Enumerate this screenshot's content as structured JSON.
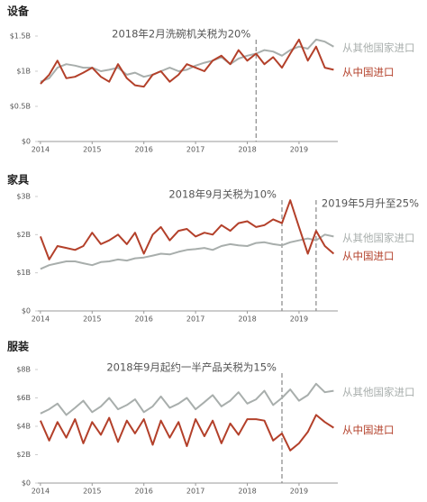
{
  "chart_data": [
    {
      "type": "line",
      "title": "设备",
      "x": [
        2014,
        2014.17,
        2014.33,
        2014.5,
        2014.67,
        2014.83,
        2015,
        2015.17,
        2015.33,
        2015.5,
        2015.67,
        2015.83,
        2016,
        2016.17,
        2016.33,
        2016.5,
        2016.67,
        2016.83,
        2017,
        2017.17,
        2017.33,
        2017.5,
        2017.67,
        2017.83,
        2018,
        2018.17,
        2018.33,
        2018.5,
        2018.67,
        2018.83,
        2019,
        2019.17,
        2019.33,
        2019.5,
        2019.67
      ],
      "series": [
        {
          "name": "从其他国家进口",
          "color": "#a8aeac",
          "values": [
            0.85,
            0.9,
            1.05,
            1.1,
            1.08,
            1.05,
            1.05,
            1.0,
            1.02,
            1.05,
            0.95,
            0.98,
            0.92,
            0.95,
            1.0,
            1.05,
            1.0,
            1.02,
            1.08,
            1.12,
            1.15,
            1.2,
            1.1,
            1.18,
            1.22,
            1.25,
            1.3,
            1.28,
            1.22,
            1.3,
            1.35,
            1.32,
            1.45,
            1.42,
            1.35
          ]
        },
        {
          "name": "从中国进口",
          "color": "#b3402a",
          "values": [
            0.82,
            0.95,
            1.15,
            0.9,
            0.92,
            0.98,
            1.05,
            0.92,
            0.85,
            1.1,
            0.9,
            0.8,
            0.78,
            0.95,
            1.0,
            0.85,
            0.95,
            1.1,
            1.05,
            1.0,
            1.15,
            1.22,
            1.1,
            1.3,
            1.15,
            1.25,
            1.1,
            1.2,
            1.05,
            1.25,
            1.45,
            1.15,
            1.35,
            1.05,
            1.02
          ]
        }
      ],
      "events": [
        {
          "x": 2018.17,
          "label": "2018年2月洗碗机关税为20%"
        }
      ],
      "xlim": [
        2013.95,
        2019.75
      ],
      "xticks": [
        2014,
        2015,
        2016,
        2017,
        2018,
        2019
      ],
      "ylim": [
        0,
        1.5
      ],
      "yticks": [
        {
          "value": 0,
          "label": "$0"
        },
        {
          "value": 0.5,
          "label": "$0.5B"
        },
        {
          "value": 1,
          "label": "$1B"
        },
        {
          "value": 1.5,
          "label": "$1.5B"
        }
      ]
    },
    {
      "type": "line",
      "title": "家具",
      "x": [
        2014,
        2014.17,
        2014.33,
        2014.5,
        2014.67,
        2014.83,
        2015,
        2015.17,
        2015.33,
        2015.5,
        2015.67,
        2015.83,
        2016,
        2016.17,
        2016.33,
        2016.5,
        2016.67,
        2016.83,
        2017,
        2017.17,
        2017.33,
        2017.5,
        2017.67,
        2017.83,
        2018,
        2018.17,
        2018.33,
        2018.5,
        2018.67,
        2018.83,
        2019,
        2019.17,
        2019.33,
        2019.5,
        2019.67
      ],
      "series": [
        {
          "name": "从其他国家进口",
          "color": "#a8aeac",
          "values": [
            1.1,
            1.2,
            1.25,
            1.3,
            1.3,
            1.25,
            1.2,
            1.28,
            1.3,
            1.35,
            1.32,
            1.38,
            1.4,
            1.45,
            1.5,
            1.48,
            1.55,
            1.6,
            1.62,
            1.65,
            1.6,
            1.7,
            1.75,
            1.72,
            1.7,
            1.78,
            1.8,
            1.75,
            1.72,
            1.8,
            1.85,
            1.9,
            1.85,
            2.0,
            1.95
          ]
        },
        {
          "name": "从中国进口",
          "color": "#b3402a",
          "values": [
            1.95,
            1.35,
            1.7,
            1.65,
            1.6,
            1.7,
            2.05,
            1.75,
            1.85,
            2.0,
            1.75,
            2.05,
            1.5,
            2.0,
            2.2,
            1.85,
            2.1,
            2.15,
            1.95,
            2.05,
            2.0,
            2.25,
            2.1,
            2.3,
            2.35,
            2.2,
            2.25,
            2.4,
            2.3,
            2.9,
            2.2,
            1.5,
            2.1,
            1.7,
            1.5
          ]
        }
      ],
      "events": [
        {
          "x": 2018.67,
          "label": "2018年9月关税为10%"
        },
        {
          "x": 2019.33,
          "label": "2019年5月升至25%"
        }
      ],
      "xlim": [
        2013.95,
        2019.75
      ],
      "xticks": [
        2014,
        2015,
        2016,
        2017,
        2018,
        2019
      ],
      "ylim": [
        0,
        3
      ],
      "yticks": [
        {
          "value": 0,
          "label": "$0"
        },
        {
          "value": 1,
          "label": "$1B"
        },
        {
          "value": 2,
          "label": "$2B"
        },
        {
          "value": 3,
          "label": "$3B"
        }
      ]
    },
    {
      "type": "line",
      "title": "服装",
      "x": [
        2014,
        2014.17,
        2014.33,
        2014.5,
        2014.67,
        2014.83,
        2015,
        2015.17,
        2015.33,
        2015.5,
        2015.67,
        2015.83,
        2016,
        2016.17,
        2016.33,
        2016.5,
        2016.67,
        2016.83,
        2017,
        2017.17,
        2017.33,
        2017.5,
        2017.67,
        2017.83,
        2018,
        2018.17,
        2018.33,
        2018.5,
        2018.67,
        2018.83,
        2019,
        2019.17,
        2019.33,
        2019.5,
        2019.67
      ],
      "series": [
        {
          "name": "从其他国家进口",
          "color": "#a8aeac",
          "values": [
            4.9,
            5.2,
            5.6,
            4.8,
            5.3,
            5.8,
            5.0,
            5.4,
            6.0,
            5.2,
            5.5,
            5.9,
            5.0,
            5.4,
            6.1,
            5.3,
            5.6,
            6.0,
            5.2,
            5.7,
            6.2,
            5.4,
            5.8,
            6.4,
            5.6,
            5.9,
            6.5,
            5.5,
            6.0,
            6.6,
            5.8,
            6.2,
            7.0,
            6.4,
            6.5
          ]
        },
        {
          "name": "从中国进口",
          "color": "#b3402a",
          "values": [
            4.4,
            3.0,
            4.3,
            3.2,
            4.5,
            2.8,
            4.3,
            3.4,
            4.6,
            2.9,
            4.4,
            3.5,
            4.5,
            2.7,
            4.4,
            3.2,
            4.3,
            2.6,
            4.5,
            3.3,
            4.4,
            2.8,
            4.2,
            3.4,
            4.5,
            4.5,
            4.4,
            3.0,
            3.5,
            2.3,
            2.8,
            3.6,
            4.8,
            4.3,
            3.9
          ]
        }
      ],
      "events": [
        {
          "x": 2018.67,
          "label": "2018年9月起约一半产品关税为15%"
        }
      ],
      "xlim": [
        2013.95,
        2019.75
      ],
      "xticks": [
        2014,
        2015,
        2016,
        2017,
        2018,
        2019
      ],
      "ylim": [
        0,
        8
      ],
      "yticks": [
        {
          "value": 0,
          "label": "$0"
        },
        {
          "value": 2,
          "label": "$2B"
        },
        {
          "value": 4,
          "label": "$4B"
        },
        {
          "value": 6,
          "label": "$6B"
        },
        {
          "value": 8,
          "label": "$8B"
        }
      ]
    }
  ]
}
